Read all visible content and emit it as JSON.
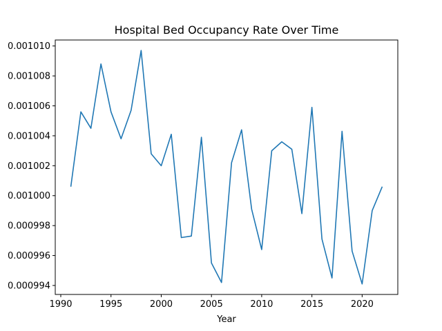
{
  "chart_data": {
    "type": "line",
    "title": "Hospital Bed Occupancy Rate Over Time",
    "xlabel": "Year",
    "ylabel": "",
    "xlim": [
      1989.45,
      2023.55
    ],
    "ylim": [
      0.0009934,
      0.0010104
    ],
    "x_ticks": [
      1990,
      1995,
      2000,
      2005,
      2010,
      2015,
      2020
    ],
    "y_ticks": [
      0.000994,
      0.000996,
      0.000998,
      0.001,
      0.001002,
      0.001004,
      0.001006,
      0.001008,
      0.00101
    ],
    "y_tick_labels": [
      "0.000994",
      "0.000996",
      "0.000998",
      "0.001000",
      "0.001002",
      "0.001004",
      "0.001006",
      "0.001008",
      "0.001010"
    ],
    "grid": false,
    "series": [
      {
        "color": "#1f77b4",
        "x": [
          1991,
          1992,
          1993,
          1994,
          1995,
          1996,
          1997,
          1998,
          1999,
          2000,
          2001,
          2002,
          2003,
          2004,
          2005,
          2006,
          2007,
          2008,
          2009,
          2010,
          2011,
          2012,
          2013,
          2014,
          2015,
          2016,
          2017,
          2018,
          2019,
          2020,
          2021,
          2022
        ],
        "values": [
          0.0010006,
          0.0010056,
          0.0010045,
          0.0010088,
          0.0010056,
          0.0010038,
          0.0010057,
          0.0010097,
          0.0010028,
          0.001002,
          0.0010041,
          0.0009972,
          0.0009973,
          0.0010039,
          0.0009955,
          0.0009942,
          0.0010022,
          0.0010044,
          0.0009991,
          0.0009964,
          0.001003,
          0.0010036,
          0.0010031,
          0.0009988,
          0.0010059,
          0.0009971,
          0.0009945,
          0.0010043,
          0.0009963,
          0.0009941,
          0.000999,
          0.0010006
        ]
      }
    ]
  }
}
